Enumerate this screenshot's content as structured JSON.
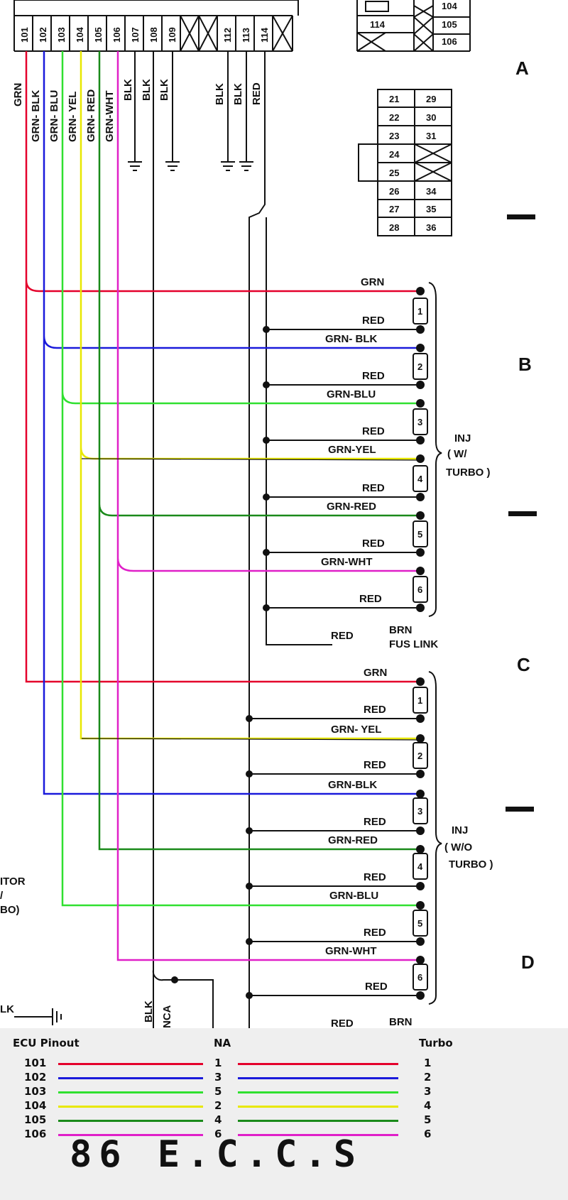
{
  "section_labels": [
    "A",
    "B",
    "C",
    "D"
  ],
  "ecu_pins": [
    "101",
    "102",
    "103",
    "104",
    "105",
    "106",
    "107",
    "108",
    "109",
    "112",
    "113",
    "114"
  ],
  "ecu_wire_labels": [
    "GRN",
    "GRN- BLK",
    "GRN- BLU",
    "GRN- YEL",
    "GRN- RED",
    "GRN-WHT",
    "BLK",
    "BLK",
    "BLK",
    "BLK",
    "BLK",
    "RED"
  ],
  "connector_top_right": [
    "104",
    "105",
    "106",
    "114"
  ],
  "connector_grid": [
    [
      "21",
      "29"
    ],
    [
      "22",
      "30"
    ],
    [
      "23",
      "31"
    ],
    [
      "24",
      ""
    ],
    [
      "25",
      ""
    ],
    [
      "26",
      "34"
    ],
    [
      "27",
      "35"
    ],
    [
      "28",
      "36"
    ]
  ],
  "colors": {
    "red": "#e4002b",
    "blue": "#1a1adb",
    "lime": "#30e030",
    "yellow": "#e8e800",
    "green": "#1a8a1a",
    "magenta": "#e020c8",
    "black": "#111111"
  },
  "turbo_group": {
    "title": [
      "INJ",
      "( W/",
      "TURBO )"
    ],
    "injectors": [
      {
        "num": "1",
        "signal": "GRN",
        "power": "RED"
      },
      {
        "num": "2",
        "signal": "GRN- BLK",
        "power": "RED"
      },
      {
        "num": "3",
        "signal": "GRN-BLU",
        "power": "RED"
      },
      {
        "num": "4",
        "signal": "GRN-YEL",
        "power": "RED"
      },
      {
        "num": "5",
        "signal": "GRN-RED",
        "power": "RED"
      },
      {
        "num": "6",
        "signal": "GRN-WHT",
        "power": "RED"
      }
    ],
    "feed_label": "RED",
    "fus_link": [
      "BRN",
      "FUS  LINK"
    ]
  },
  "na_group": {
    "title": [
      "INJ",
      "( W/O",
      "TURBO )"
    ],
    "injectors": [
      {
        "num": "1",
        "signal": "GRN",
        "power": "RED"
      },
      {
        "num": "2",
        "signal": "GRN- YEL",
        "power": "RED"
      },
      {
        "num": "3",
        "signal": "GRN-BLK",
        "power": "RED"
      },
      {
        "num": "4",
        "signal": "GRN-RED",
        "power": "RED"
      },
      {
        "num": "5",
        "signal": "GRN-BLU",
        "power": "RED"
      },
      {
        "num": "6",
        "signal": "GRN-WHT",
        "power": "RED"
      }
    ],
    "bottom_labels": [
      "RED",
      "BRN"
    ]
  },
  "left_partial_text": [
    "ITOR",
    "/",
    "BO)",
    "LK"
  ],
  "bottom_partial_text": [
    "BLK",
    "NCA"
  ],
  "legend": {
    "title": "ECU Pinout",
    "na_header": "NA",
    "turbo_header": "Turbo",
    "rows": [
      {
        "pin": "101",
        "color": "#e4002b",
        "na": "1",
        "turbo": "1"
      },
      {
        "pin": "102",
        "color": "#1a1adb",
        "na": "3",
        "turbo": "2"
      },
      {
        "pin": "103",
        "color": "#30e030",
        "na": "5",
        "turbo": "3"
      },
      {
        "pin": "104",
        "color": "#e8e800",
        "na": "2",
        "turbo": "4"
      },
      {
        "pin": "105",
        "color": "#1a8a1a",
        "na": "4",
        "turbo": "5"
      },
      {
        "pin": "106",
        "color": "#e020c8",
        "na": "6",
        "turbo": "6"
      }
    ]
  },
  "footer_title": "86 E.C.C.S"
}
